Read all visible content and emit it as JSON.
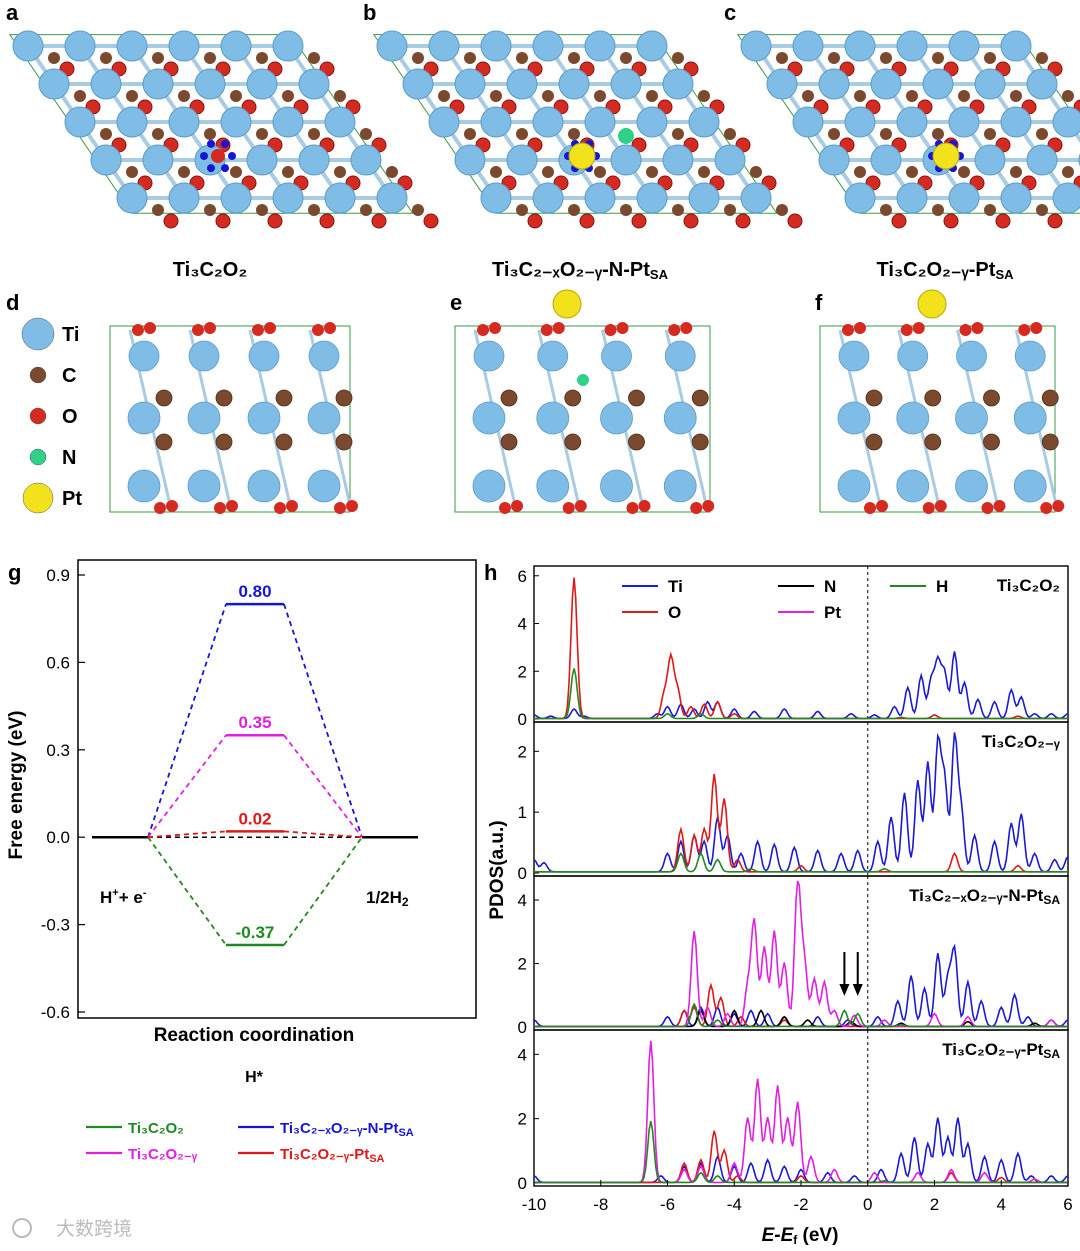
{
  "panels": {
    "a": "a",
    "b": "b",
    "c": "c",
    "d": "d",
    "e": "e",
    "f": "f",
    "g": "g",
    "h": "h"
  },
  "structure_labels": {
    "a": {
      "main": "Ti₃C₂O₂"
    },
    "b": {
      "main": "Ti₃C₂₋ₓO₂₋ᵧ-N-Pt",
      "sub": "SA"
    },
    "c": {
      "main": "Ti₃C₂O₂₋ᵧ-Pt",
      "sub": "SA"
    }
  },
  "element_legend": [
    {
      "symbol": "Ti",
      "color": "#7fbde6"
    },
    {
      "symbol": "C",
      "color": "#7b4a2e"
    },
    {
      "symbol": "O",
      "color": "#d42a1f"
    },
    {
      "symbol": "N",
      "color": "#2fd18a"
    },
    {
      "symbol": "Pt",
      "color": "#f2e21c"
    }
  ],
  "watermark": "大数跨境",
  "chart_data": [
    {
      "panel": "g",
      "type": "line",
      "title": "",
      "xlabel": "Reaction coordination",
      "ylabel": "Free energy (eV)",
      "ylim": [
        -0.7,
        0.9
      ],
      "yticks": [
        "0.9",
        "0.6",
        "0.3",
        "0.0",
        "-0.3",
        "-0.6"
      ],
      "stages": [
        "H⁺+ e⁻",
        "H*",
        "1/2H₂"
      ],
      "series": [
        {
          "name": "Ti₃C₂O₂",
          "color": "#1f8a1f",
          "values": [
            0.0,
            -0.37,
            0.0
          ],
          "label": "-0.37"
        },
        {
          "name": "Ti₃C₂₋ₓO₂₋ᵧ-N-Pt",
          "sub": "SA",
          "color": "#1515d6",
          "values": [
            0.0,
            0.8,
            0.0
          ],
          "label": "0.80"
        },
        {
          "name": "Ti₃C₂O₂₋ᵧ",
          "color": "#e31ee3",
          "values": [
            0.0,
            0.35,
            0.0
          ],
          "label": "0.35"
        },
        {
          "name": "Ti₃C₂O₂₋ᵧ-Pt",
          "sub": "SA",
          "color": "#e01818",
          "values": [
            0.0,
            0.02,
            0.0
          ],
          "label": "0.02"
        }
      ]
    },
    {
      "panel": "h",
      "type": "line",
      "xlabel": "E-E",
      "xlabel_sub": "f",
      "xlabel_unit": " (eV)",
      "ylabel": "PDOS(a.u.)",
      "xlim": [
        -10,
        6
      ],
      "xticks": [
        "-10",
        "-8",
        "-6",
        "-4",
        "-2",
        "0",
        "2",
        "4",
        "6"
      ],
      "legend": [
        {
          "name": "Ti",
          "color": "#1a1ad6"
        },
        {
          "name": "O",
          "color": "#e01818"
        },
        {
          "name": "N",
          "color": "#000000"
        },
        {
          "name": "Pt",
          "color": "#e31ee3"
        },
        {
          "name": "H",
          "color": "#1f8a1f"
        }
      ],
      "subplots": [
        {
          "label": "Ti₃C₂O₂",
          "ylim": [
            0,
            6.2
          ],
          "yticks": [
            "0",
            "2",
            "4",
            "6"
          ],
          "peaks": {
            "Ti": [
              [
                -10,
                0.15
              ],
              [
                -9.5,
                0.1
              ],
              [
                -8.8,
                0.4
              ],
              [
                -8.5,
                0.1
              ],
              [
                -6.3,
                0.2
              ],
              [
                -6.0,
                0.5
              ],
              [
                -5.6,
                0.6
              ],
              [
                -5.2,
                0.4
              ],
              [
                -4.8,
                0.7
              ],
              [
                -4.5,
                0.7
              ],
              [
                -4.0,
                0.4
              ],
              [
                -3.4,
                0.3
              ],
              [
                -2.5,
                0.4
              ],
              [
                -1.5,
                0.3
              ],
              [
                -0.5,
                0.2
              ],
              [
                0.2,
                0.15
              ],
              [
                0.8,
                0.5
              ],
              [
                1.2,
                1.3
              ],
              [
                1.6,
                1.8
              ],
              [
                1.9,
                1.6
              ],
              [
                2.1,
                2.3
              ],
              [
                2.3,
                1.9
              ],
              [
                2.6,
                2.8
              ],
              [
                2.9,
                1.5
              ],
              [
                3.3,
                0.8
              ],
              [
                3.8,
                0.7
              ],
              [
                4.3,
                1.2
              ],
              [
                4.6,
                0.9
              ],
              [
                5.0,
                0.2
              ],
              [
                5.5,
                0.2
              ],
              [
                6,
                0.2
              ]
            ],
            "O": [
              [
                -8.8,
                5.9
              ],
              [
                -6.1,
                1.0
              ],
              [
                -5.9,
                2.5
              ],
              [
                -5.7,
                1.2
              ],
              [
                -5.3,
                0.5
              ],
              [
                -4.9,
                0.6
              ],
              [
                -4.5,
                0.7
              ],
              [
                -4.0,
                0.2
              ],
              [
                2.0,
                0.15
              ],
              [
                4.5,
                0.1
              ]
            ],
            "H": [
              [
                -8.8,
                2.1
              ],
              [
                -6.0,
                0.2
              ],
              [
                -5.0,
                0.2
              ],
              [
                1.0,
                0.05
              ]
            ],
            "N": [],
            "Pt": []
          }
        },
        {
          "label": "Ti₃C₂O₂₋ᵧ",
          "ylim": [
            0,
            2.4
          ],
          "yticks": [
            "0",
            "1",
            "2"
          ],
          "peaks": {
            "Ti": [
              [
                -10,
                0.2
              ],
              [
                -9.7,
                0.15
              ],
              [
                -6.0,
                0.3
              ],
              [
                -5.6,
                0.5
              ],
              [
                -5.2,
                0.6
              ],
              [
                -4.9,
                0.5
              ],
              [
                -4.5,
                0.9
              ],
              [
                -4.2,
                0.6
              ],
              [
                -3.8,
                0.3
              ],
              [
                -3.3,
                0.5
              ],
              [
                -2.8,
                0.45
              ],
              [
                -2.2,
                0.4
              ],
              [
                -1.5,
                0.35
              ],
              [
                -0.8,
                0.3
              ],
              [
                -0.3,
                0.35
              ],
              [
                0.3,
                0.5
              ],
              [
                0.7,
                0.9
              ],
              [
                1.1,
                1.3
              ],
              [
                1.5,
                1.5
              ],
              [
                1.8,
                1.8
              ],
              [
                2.1,
                2.1
              ],
              [
                2.3,
                1.5
              ],
              [
                2.6,
                2.2
              ],
              [
                2.8,
                1.0
              ],
              [
                3.2,
                0.6
              ],
              [
                3.8,
                0.5
              ],
              [
                4.3,
                0.8
              ],
              [
                4.6,
                0.95
              ],
              [
                5.0,
                0.3
              ],
              [
                5.6,
                0.2
              ],
              [
                6,
                0.25
              ]
            ],
            "O": [
              [
                -5.6,
                0.7
              ],
              [
                -5.2,
                0.6
              ],
              [
                -4.9,
                0.7
              ],
              [
                -4.6,
                1.6
              ],
              [
                -4.3,
                1.2
              ],
              [
                -3.9,
                0.2
              ],
              [
                -2.0,
                0.1
              ],
              [
                2.6,
                0.3
              ],
              [
                4.5,
                0.1
              ]
            ],
            "H": [
              [
                -5.6,
                0.3
              ],
              [
                -5.0,
                0.3
              ],
              [
                -4.5,
                0.2
              ],
              [
                -3.5,
                0.05
              ],
              [
                0.5,
                0.05
              ]
            ],
            "N": [],
            "Pt": []
          }
        },
        {
          "label": "Ti₃C₂₋ₓO₂₋ᵧ-N-Pt",
          "sub": "SA",
          "ylim": [
            0,
            4.6
          ],
          "yticks": [
            "0",
            "2",
            "4"
          ],
          "arrows_x": [
            -0.7,
            -0.3
          ],
          "peaks": {
            "Ti": [
              [
                -10,
                0.2
              ],
              [
                -6.0,
                0.3
              ],
              [
                -5.5,
                0.5
              ],
              [
                -5.0,
                0.6
              ],
              [
                -4.5,
                0.6
              ],
              [
                -4.0,
                0.4
              ],
              [
                -3.5,
                0.5
              ],
              [
                -3.0,
                0.4
              ],
              [
                -2.5,
                0.3
              ],
              [
                -1.5,
                0.3
              ],
              [
                -0.6,
                0.2
              ],
              [
                0.3,
                0.3
              ],
              [
                0.9,
                0.8
              ],
              [
                1.3,
                1.6
              ],
              [
                1.7,
                1.2
              ],
              [
                2.1,
                2.3
              ],
              [
                2.4,
                1.5
              ],
              [
                2.6,
                2.4
              ],
              [
                3.0,
                1.4
              ],
              [
                3.4,
                0.8
              ],
              [
                4.0,
                0.6
              ],
              [
                4.4,
                1.0
              ],
              [
                4.8,
                0.3
              ],
              [
                5.5,
                0.2
              ],
              [
                6,
                0.2
              ]
            ],
            "O": [
              [
                -5.5,
                0.5
              ],
              [
                -5.2,
                0.6
              ],
              [
                -4.7,
                1.3
              ],
              [
                -4.4,
                0.9
              ],
              [
                -3.8,
                0.3
              ],
              [
                -2.5,
                0.2
              ]
            ],
            "N": [
              [
                -5.0,
                0.5
              ],
              [
                -4.0,
                0.5
              ],
              [
                -3.2,
                0.5
              ],
              [
                -2.5,
                0.3
              ],
              [
                -1.8,
                0.2
              ],
              [
                -0.5,
                0.15
              ],
              [
                1.0,
                0.1
              ],
              [
                3.0,
                0.15
              ],
              [
                5.0,
                0.1
              ]
            ],
            "Pt": [
              [
                -5.2,
                3.0
              ],
              [
                -4.8,
                0.6
              ],
              [
                -4.2,
                0.4
              ],
              [
                -3.6,
                1.2
              ],
              [
                -3.4,
                3.3
              ],
              [
                -3.1,
                2.5
              ],
              [
                -2.8,
                3.0
              ],
              [
                -2.5,
                2.0
              ],
              [
                -2.1,
                4.6
              ],
              [
                -1.9,
                2.0
              ],
              [
                -1.6,
                1.5
              ],
              [
                -1.3,
                1.4
              ],
              [
                -1.0,
                0.5
              ],
              [
                -0.4,
                0.35
              ],
              [
                0.5,
                0.2
              ],
              [
                2.0,
                0.4
              ],
              [
                3.0,
                0.3
              ],
              [
                5.5,
                0.2
              ]
            ],
            "H": [
              [
                -5.2,
                0.7
              ],
              [
                -4.5,
                0.2
              ],
              [
                -0.7,
                0.5
              ],
              [
                -0.3,
                0.4
              ],
              [
                1.0,
                0.05
              ]
            ]
          }
        },
        {
          "label": "Ti₃C₂O₂₋ᵧ-Pt",
          "sub": "SA",
          "ylim": [
            0,
            4.6
          ],
          "yticks": [
            "0",
            "2",
            "4"
          ],
          "peaks": {
            "Ti": [
              [
                -10,
                0.2
              ],
              [
                -6.2,
                0.2
              ],
              [
                -5.5,
                0.5
              ],
              [
                -5.0,
                0.6
              ],
              [
                -4.5,
                0.8
              ],
              [
                -4.0,
                0.5
              ],
              [
                -3.5,
                0.6
              ],
              [
                -3.0,
                0.7
              ],
              [
                -2.5,
                0.5
              ],
              [
                -2.0,
                0.4
              ],
              [
                -1.2,
                0.3
              ],
              [
                -0.4,
                0.2
              ],
              [
                0.4,
                0.4
              ],
              [
                1.0,
                0.9
              ],
              [
                1.4,
                1.4
              ],
              [
                1.8,
                1.2
              ],
              [
                2.1,
                2.0
              ],
              [
                2.4,
                1.4
              ],
              [
                2.7,
                2.0
              ],
              [
                3.0,
                1.2
              ],
              [
                3.5,
                0.8
              ],
              [
                4.0,
                0.7
              ],
              [
                4.5,
                0.9
              ],
              [
                4.9,
                0.2
              ],
              [
                5.5,
                0.2
              ],
              [
                6,
                0.2
              ]
            ],
            "O": [
              [
                -5.5,
                0.6
              ],
              [
                -5.0,
                0.7
              ],
              [
                -4.6,
                1.6
              ],
              [
                -4.3,
                1.0
              ],
              [
                -3.9,
                0.2
              ],
              [
                -2.0,
                0.2
              ],
              [
                2.5,
                0.3
              ],
              [
                4.0,
                0.15
              ]
            ],
            "Pt": [
              [
                -6.5,
                4.4
              ],
              [
                -5.5,
                0.4
              ],
              [
                -5.0,
                0.5
              ],
              [
                -4.0,
                0.6
              ],
              [
                -3.6,
                2.0
              ],
              [
                -3.3,
                3.2
              ],
              [
                -3.0,
                2.0
              ],
              [
                -2.7,
                3.0
              ],
              [
                -2.4,
                2.0
              ],
              [
                -2.1,
                2.5
              ],
              [
                -1.7,
                0.8
              ],
              [
                -1.0,
                0.4
              ],
              [
                0.2,
                0.3
              ],
              [
                1.5,
                0.3
              ],
              [
                2.5,
                0.4
              ],
              [
                3.5,
                0.3
              ],
              [
                5.0,
                0.1
              ]
            ],
            "H": [
              [
                -6.5,
                1.9
              ],
              [
                -5.0,
                0.3
              ],
              [
                -4.5,
                0.2
              ],
              [
                0.5,
                0.05
              ]
            ],
            "N": []
          }
        }
      ]
    }
  ]
}
